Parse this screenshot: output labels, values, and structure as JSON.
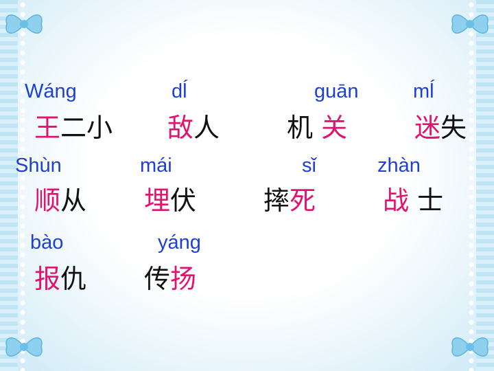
{
  "rows": [
    {
      "pinyin": [
        "Wáng",
        "dĺ",
        "guān",
        "mĺ"
      ],
      "words": [
        {
          "a": "王",
          "b": "二小"
        },
        {
          "a": "敌",
          "b": "人"
        },
        {
          "a": "机 ",
          "b": "关"
        },
        {
          "a": "迷",
          "b": "失"
        }
      ]
    },
    {
      "pinyin": [
        "Shùn",
        "mái",
        "sǐ",
        "zhàn"
      ],
      "words": [
        {
          "a": "顺",
          "b": "从"
        },
        {
          "a": "埋",
          "b": "伏"
        },
        {
          "a": "摔",
          "b": "死"
        },
        {
          "a": "战 ",
          "b": "士"
        }
      ]
    },
    {
      "pinyin": [
        "bào",
        "yáng"
      ],
      "words": [
        {
          "a": "报",
          "b": "仇"
        },
        {
          "a": "传",
          "b": "扬"
        }
      ]
    }
  ],
  "colors": {
    "pinyin": "#1f3fd1",
    "highlight": "#e0136f",
    "text": "#111111"
  },
  "decorations": [
    "bow-icon",
    "lace-border"
  ]
}
